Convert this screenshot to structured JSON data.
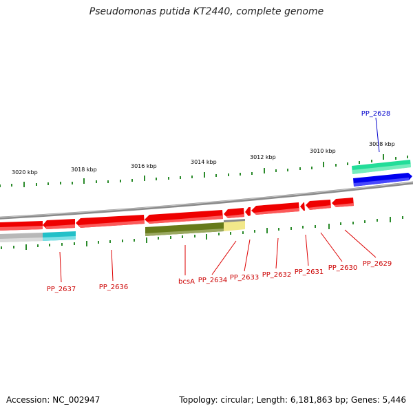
{
  "title": "Pseudomonas putida KT2440, complete genome",
  "accession": "Accession: NC_002947",
  "topology": "Topology: circular; Length: 6,181,863 bp; Genes: 5,446",
  "colors": {
    "gene_red": "#ee0000",
    "gene_olive": "#667a1a",
    "gene_yellow": "#f2e88a",
    "gene_cyan": "#22c0c8",
    "gene_gray": "#b8b8b8",
    "gene_green": "#22dd99",
    "gene_blue": "#0000ee",
    "label_red": "#cc0000",
    "label_blue": "#0000cc",
    "tick_green": "#2a8a2a"
  },
  "kbp_labels": [
    "3020 kbp",
    "3018 kbp",
    "3016 kbp",
    "3014 kbp",
    "3012 kbp",
    "3010 kbp",
    "3008 kbp"
  ],
  "gene_labels": [
    "PP_2628",
    "PP_2629",
    "PP_2630",
    "PP_2631",
    "PP_2632",
    "PP_2633",
    "PP_2634",
    "bcsA",
    "PP_2636",
    "PP_2637"
  ]
}
